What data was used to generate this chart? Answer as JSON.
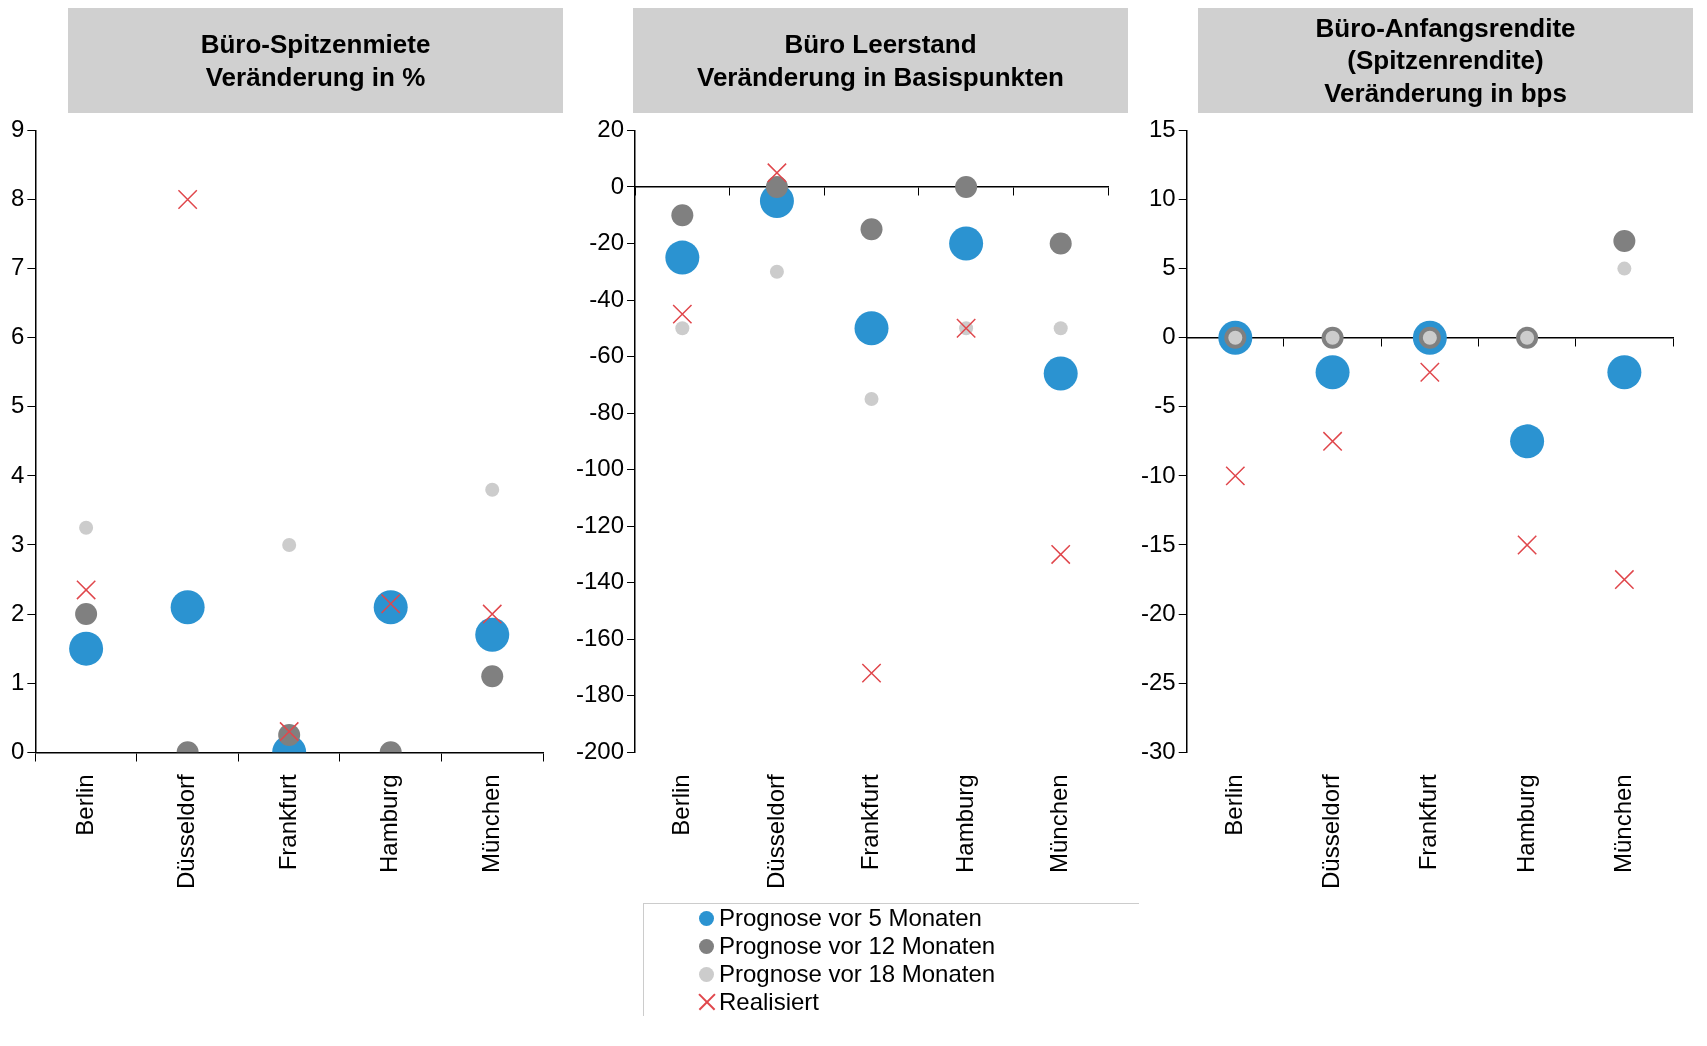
{
  "chart_data": [
    {
      "type": "scatter",
      "title": "Büro-Spitzenmiete\nVeränderung in %",
      "categories": [
        "Berlin",
        "Düsseldorf",
        "Frankfurt",
        "Hamburg",
        "München"
      ],
      "ylim": [
        0,
        9
      ],
      "yticks": [
        0,
        1,
        2,
        3,
        4,
        5,
        6,
        7,
        8,
        9
      ],
      "grid": false,
      "legend": false,
      "series": [
        {
          "color": "#2b93d1",
          "marker": "circle",
          "values": [
            1.5,
            2.1,
            0,
            2.1,
            1.7
          ]
        },
        {
          "color": "#808080",
          "marker": "circle",
          "values": [
            2.0,
            0,
            0.25,
            0,
            1.1
          ]
        },
        {
          "color": "#cccccc",
          "marker": "circle",
          "values": [
            3.25,
            null,
            3.0,
            null,
            3.8
          ]
        },
        {
          "color": "#e0474c",
          "marker": "cross",
          "values": [
            2.35,
            8.0,
            0.3,
            2.15,
            2.0
          ]
        }
      ]
    },
    {
      "type": "scatter",
      "title": "Büro Leerstand\nVeränderung in Basispunkten",
      "categories": [
        "Berlin",
        "Düsseldorf",
        "Frankfurt",
        "Hamburg",
        "München"
      ],
      "ylim": [
        -200,
        20
      ],
      "yticks": [
        -200,
        -180,
        -160,
        -140,
        -120,
        -100,
        -80,
        -60,
        -40,
        -20,
        0,
        20
      ],
      "legend": "bottom",
      "series": [
        {
          "name": "Prognose vor 5 Monaten",
          "color": "#2b93d1",
          "marker": "circle",
          "values": [
            -25,
            -5,
            -50,
            -20,
            -66
          ]
        },
        {
          "name": "Prognose vor 12 Monaten",
          "color": "#808080",
          "marker": "circle",
          "values": [
            -10,
            0,
            -15,
            0,
            -20
          ]
        },
        {
          "name": "Prognose vor 18 Monaten",
          "color": "#cccccc",
          "marker": "circle",
          "values": [
            -50,
            -30,
            -75,
            -50,
            -50
          ]
        },
        {
          "name": "Realisiert",
          "color": "#e0474c",
          "marker": "cross",
          "values": [
            -45,
            5,
            -172,
            -50,
            -130
          ]
        }
      ]
    },
    {
      "type": "scatter",
      "title": "Büro-Anfangsrendite\n(Spitzenrendite)\nVeränderung in bps",
      "categories": [
        "Berlin",
        "Düsseldorf",
        "Frankfurt",
        "Hamburg",
        "München"
      ],
      "ylim": [
        -30,
        15
      ],
      "yticks": [
        -30,
        -25,
        -20,
        -15,
        -10,
        -5,
        0,
        5,
        10,
        15
      ],
      "legend": false,
      "series": [
        {
          "color": "#2b93d1",
          "marker": "circle",
          "values": [
            0,
            -2.5,
            0,
            -7.5,
            -2.5
          ]
        },
        {
          "color": "#808080",
          "marker": "circle",
          "values": [
            0,
            0,
            0,
            0,
            7
          ]
        },
        {
          "color": "#cccccc",
          "marker": "circle",
          "values": [
            0,
            0,
            0,
            0,
            5
          ]
        },
        {
          "color": "#e0474c",
          "marker": "cross",
          "values": [
            -10,
            -7.5,
            -2.5,
            -15,
            -17.5
          ]
        }
      ]
    }
  ]
}
